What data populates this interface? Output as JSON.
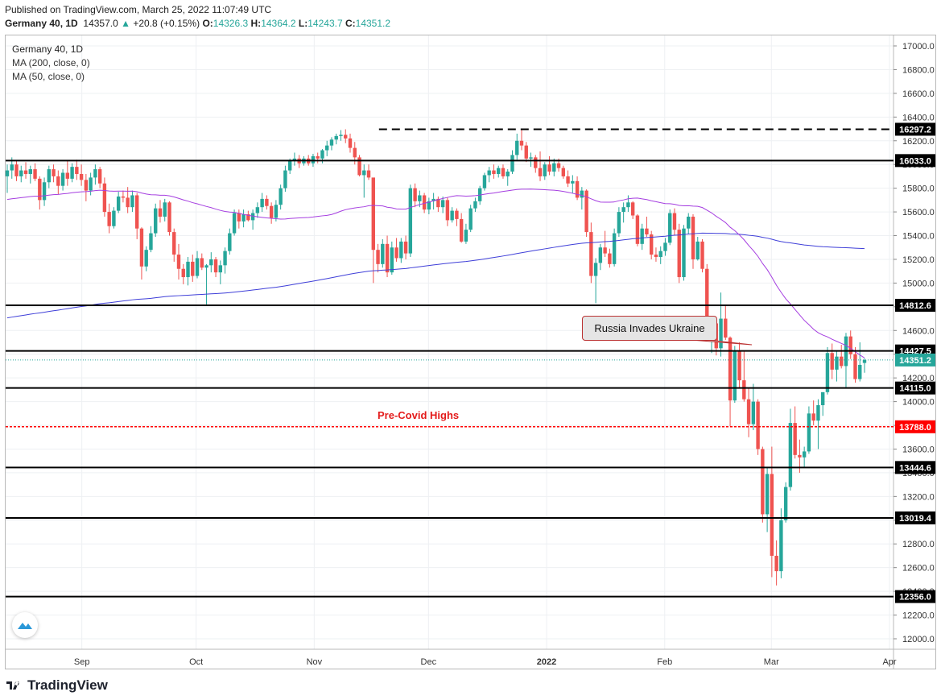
{
  "publish_line": "Published on TradingView.com, March 25, 2022 11:07:49 UTC",
  "ohlc": {
    "symbol": "Germany 40, 1D",
    "last": "14357.0",
    "arrow": "▲",
    "change": "+20.8 (+0.15%)",
    "o_label": "O:",
    "o": "14326.3",
    "h_label": "H:",
    "h": "14364.2",
    "l_label": "L:",
    "l": "14243.7",
    "c_label": "C:",
    "c": "14351.2"
  },
  "legend": {
    "title": "Germany 40, 1D",
    "ma200": "MA (200, close, 0)",
    "ma50": "MA (50, close, 0)"
  },
  "footer": {
    "brand": "TradingView",
    "logo_icon": "tradingview-logo-icon"
  },
  "annotations": {
    "callout": "Russia Invades Ukraine",
    "precovid": "Pre-Covid Highs"
  },
  "colors": {
    "up": "#26a69a",
    "down": "#ef5350",
    "ma200": "#3f3fd8",
    "ma50": "#a53ee0",
    "level": "#000000",
    "precovid": "#ff0000",
    "last_price": "#26a69a"
  },
  "chart_data": {
    "type": "candlestick",
    "symbol": "Germany 40",
    "interval": "1D",
    "ylim": [
      11900,
      17100
    ],
    "y_ticks": [
      12000,
      12200,
      12400,
      12600,
      12800,
      13000,
      13200,
      13400,
      13600,
      13800,
      14000,
      14200,
      14400,
      14600,
      14800,
      15000,
      15200,
      15400,
      15600,
      15800,
      16000,
      16200,
      16400,
      16600,
      16800,
      17000
    ],
    "x_ticks": [
      {
        "label": "Sep",
        "date": "2021-09-01"
      },
      {
        "label": "Oct",
        "date": "2021-10-01"
      },
      {
        "label": "Nov",
        "date": "2021-11-01"
      },
      {
        "label": "Dec",
        "date": "2021-12-01"
      },
      {
        "label": "2022",
        "date": "2022-01-01"
      },
      {
        "label": "Feb",
        "date": "2022-02-01"
      },
      {
        "label": "Mar",
        "date": "2022-03-01"
      },
      {
        "label": "Apr",
        "date": "2022-04-01"
      }
    ],
    "x_range": [
      "2021-08-12",
      "2022-04-01"
    ],
    "levels": [
      {
        "value": 16297.2,
        "label": "16297.2",
        "style": "dashed",
        "from": "2021-11-18"
      },
      {
        "value": 16033.0,
        "label": "16033.0",
        "style": "solid"
      },
      {
        "value": 14812.6,
        "label": "14812.6",
        "style": "solid"
      },
      {
        "value": 14427.5,
        "label": "14427.5",
        "style": "solid"
      },
      {
        "value": 14115.0,
        "label": "14115.0",
        "style": "solid"
      },
      {
        "value": 13788.0,
        "label": "13788.0",
        "style": "dotted-red"
      },
      {
        "value": 13444.6,
        "label": "13444.6",
        "style": "solid"
      },
      {
        "value": 13019.4,
        "label": "13019.4",
        "style": "solid"
      },
      {
        "value": 12356.0,
        "label": "12356.0",
        "style": "solid"
      }
    ],
    "last_price": {
      "value": 14351.2,
      "label": "14351.2"
    },
    "ohlc_sequence": [
      [
        15900,
        16000,
        15760,
        15950
      ],
      [
        15950,
        16060,
        15880,
        16000
      ],
      [
        16000,
        16030,
        15860,
        15900
      ],
      [
        15900,
        15990,
        15850,
        15950
      ],
      [
        15950,
        16020,
        15880,
        15920
      ],
      [
        15920,
        15990,
        15840,
        15960
      ],
      [
        15960,
        16010,
        15860,
        15880
      ],
      [
        15880,
        15900,
        15620,
        15700
      ],
      [
        15700,
        15890,
        15650,
        15850
      ],
      [
        15850,
        15990,
        15800,
        15960
      ],
      [
        15960,
        16000,
        15850,
        15900
      ],
      [
        15900,
        15950,
        15750,
        15820
      ],
      [
        15820,
        15960,
        15780,
        15930
      ],
      [
        15930,
        16030,
        15820,
        15880
      ],
      [
        15880,
        16010,
        15850,
        15980
      ],
      [
        15980,
        16040,
        15870,
        15920
      ],
      [
        15920,
        16000,
        15820,
        15870
      ],
      [
        15870,
        15920,
        15690,
        15780
      ],
      [
        15780,
        15930,
        15740,
        15890
      ],
      [
        15890,
        16000,
        15830,
        15960
      ],
      [
        15960,
        15980,
        15800,
        15840
      ],
      [
        15840,
        15890,
        15560,
        15600
      ],
      [
        15600,
        15670,
        15420,
        15480
      ],
      [
        15480,
        15640,
        15460,
        15610
      ],
      [
        15610,
        15770,
        15590,
        15730
      ],
      [
        15730,
        15780,
        15680,
        15720
      ],
      [
        15720,
        15810,
        15590,
        15640
      ],
      [
        15640,
        15780,
        15600,
        15740
      ],
      [
        15740,
        15760,
        15370,
        15460
      ],
      [
        15460,
        15470,
        15030,
        15140
      ],
      [
        15140,
        15310,
        15100,
        15280
      ],
      [
        15280,
        15480,
        15260,
        15420
      ],
      [
        15420,
        15670,
        15390,
        15630
      ],
      [
        15630,
        15700,
        15510,
        15560
      ],
      [
        15560,
        15710,
        15520,
        15680
      ],
      [
        15680,
        15690,
        15400,
        15430
      ],
      [
        15430,
        15460,
        15180,
        15240
      ],
      [
        15240,
        15330,
        15030,
        15120
      ],
      [
        15120,
        15160,
        14990,
        15050
      ],
      [
        15050,
        15220,
        14980,
        15180
      ],
      [
        15180,
        15240,
        15010,
        15060
      ],
      [
        15060,
        15270,
        15040,
        15210
      ],
      [
        15210,
        15250,
        15110,
        15130
      ],
      [
        15130,
        15160,
        14820,
        15150
      ],
      [
        15150,
        15260,
        15090,
        15200
      ],
      [
        15200,
        15220,
        15050,
        15090
      ],
      [
        15090,
        15190,
        14990,
        15150
      ],
      [
        15150,
        15300,
        15080,
        15270
      ],
      [
        15270,
        15460,
        15240,
        15420
      ],
      [
        15420,
        15620,
        15400,
        15590
      ],
      [
        15590,
        15620,
        15460,
        15520
      ],
      [
        15520,
        15620,
        15470,
        15580
      ],
      [
        15580,
        15610,
        15520,
        15530
      ],
      [
        15530,
        15620,
        15450,
        15590
      ],
      [
        15590,
        15680,
        15550,
        15640
      ],
      [
        15640,
        15760,
        15600,
        15710
      ],
      [
        15710,
        15740,
        15620,
        15650
      ],
      [
        15650,
        15680,
        15500,
        15550
      ],
      [
        15550,
        15700,
        15520,
        15660
      ],
      [
        15660,
        15830,
        15620,
        15800
      ],
      [
        15800,
        15990,
        15770,
        15950
      ],
      [
        15950,
        16050,
        15920,
        16030
      ],
      [
        16030,
        16100,
        15990,
        16050
      ],
      [
        16050,
        16080,
        15970,
        16010
      ],
      [
        16010,
        16070,
        15990,
        16050
      ],
      [
        16050,
        16080,
        15990,
        16010
      ],
      [
        16010,
        16090,
        15980,
        16070
      ],
      [
        16070,
        16100,
        16010,
        16050
      ],
      [
        16050,
        16130,
        16010,
        16120
      ],
      [
        16120,
        16200,
        16070,
        16160
      ],
      [
        16160,
        16230,
        16120,
        16210
      ],
      [
        16210,
        16260,
        16170,
        16240
      ],
      [
        16240,
        16290,
        16200,
        16250
      ],
      [
        16250,
        16297,
        16180,
        16220
      ],
      [
        16220,
        16260,
        16100,
        16140
      ],
      [
        16140,
        16190,
        16000,
        16060
      ],
      [
        16060,
        16080,
        15900,
        15910
      ],
      [
        15910,
        16000,
        15720,
        15950
      ],
      [
        15950,
        16000,
        15870,
        15890
      ],
      [
        15890,
        15690,
        15000,
        15280
      ],
      [
        15280,
        15330,
        15090,
        15160
      ],
      [
        15160,
        15370,
        15130,
        15330
      ],
      [
        15330,
        15400,
        15050,
        15090
      ],
      [
        15090,
        15350,
        15070,
        15300
      ],
      [
        15300,
        15380,
        15180,
        15210
      ],
      [
        15210,
        15380,
        15170,
        15350
      ],
      [
        15350,
        15400,
        15200,
        15250
      ],
      [
        15250,
        15830,
        15220,
        15800
      ],
      [
        15800,
        15840,
        15640,
        15690
      ],
      [
        15690,
        15780,
        15640,
        15740
      ],
      [
        15740,
        15760,
        15590,
        15620
      ],
      [
        15620,
        15720,
        15580,
        15690
      ],
      [
        15690,
        15760,
        15620,
        15710
      ],
      [
        15710,
        15730,
        15600,
        15640
      ],
      [
        15640,
        15730,
        15590,
        15700
      ],
      [
        15700,
        15720,
        15480,
        15530
      ],
      [
        15530,
        15640,
        15510,
        15610
      ],
      [
        15610,
        15630,
        15480,
        15540
      ],
      [
        15540,
        15590,
        15340,
        15350
      ],
      [
        15350,
        15500,
        15330,
        15450
      ],
      [
        15450,
        15660,
        15430,
        15630
      ],
      [
        15630,
        15720,
        15600,
        15690
      ],
      [
        15690,
        15820,
        15660,
        15800
      ],
      [
        15800,
        15930,
        15780,
        15910
      ],
      [
        15910,
        15980,
        15850,
        15950
      ],
      [
        15950,
        16000,
        15880,
        15920
      ],
      [
        15920,
        15990,
        15890,
        15970
      ],
      [
        15970,
        16000,
        15880,
        15900
      ],
      [
        15900,
        15960,
        15820,
        15940
      ],
      [
        15940,
        16120,
        15920,
        16080
      ],
      [
        16080,
        16260,
        16040,
        16200
      ],
      [
        16200,
        16297,
        16120,
        16160
      ],
      [
        16160,
        16190,
        16020,
        16050
      ],
      [
        16050,
        16100,
        15980,
        16060
      ],
      [
        16060,
        16080,
        15930,
        15970
      ],
      [
        15970,
        16110,
        15860,
        15900
      ],
      [
        15900,
        16020,
        15870,
        16000
      ],
      [
        16000,
        16070,
        15910,
        15940
      ],
      [
        15940,
        16050,
        15900,
        16010
      ],
      [
        16010,
        16050,
        15940,
        15970
      ],
      [
        15970,
        15990,
        15880,
        15900
      ],
      [
        15900,
        15950,
        15810,
        15840
      ],
      [
        15840,
        15910,
        15760,
        15860
      ],
      [
        15860,
        15900,
        15700,
        15720
      ],
      [
        15720,
        15810,
        15620,
        15780
      ],
      [
        15780,
        15790,
        15390,
        15430
      ],
      [
        15430,
        15510,
        15000,
        15060
      ],
      [
        15060,
        15210,
        14830,
        15170
      ],
      [
        15170,
        15330,
        15110,
        15300
      ],
      [
        15300,
        15440,
        15220,
        15250
      ],
      [
        15250,
        15290,
        15130,
        15160
      ],
      [
        15160,
        15460,
        15140,
        15420
      ],
      [
        15420,
        15640,
        15390,
        15600
      ],
      [
        15600,
        15680,
        15510,
        15640
      ],
      [
        15640,
        15740,
        15600,
        15680
      ],
      [
        15680,
        15690,
        15540,
        15570
      ],
      [
        15570,
        15580,
        15310,
        15330
      ],
      [
        15330,
        15500,
        15280,
        15460
      ],
      [
        15460,
        15560,
        15390,
        15410
      ],
      [
        15410,
        15440,
        15200,
        15240
      ],
      [
        15240,
        15300,
        15180,
        15220
      ],
      [
        15220,
        15310,
        15160,
        15270
      ],
      [
        15270,
        15380,
        15230,
        15340
      ],
      [
        15340,
        15620,
        15320,
        15590
      ],
      [
        15590,
        15630,
        15400,
        15450
      ],
      [
        15450,
        15500,
        15000,
        15050
      ],
      [
        15050,
        15490,
        15020,
        15460
      ],
      [
        15460,
        15590,
        15410,
        15560
      ],
      [
        15560,
        15580,
        15120,
        15200
      ],
      [
        15200,
        15390,
        15190,
        15350
      ],
      [
        15350,
        15370,
        15090,
        15120
      ],
      [
        15120,
        15160,
        14540,
        14580
      ],
      [
        14580,
        14690,
        14410,
        14660
      ],
      [
        14660,
        14690,
        14390,
        14450
      ],
      [
        14450,
        14920,
        14380,
        14700
      ],
      [
        14700,
        14810,
        14520,
        14540
      ],
      [
        14540,
        14550,
        13790,
        14010
      ],
      [
        14010,
        14470,
        13990,
        14430
      ],
      [
        14430,
        14500,
        14120,
        14180
      ],
      [
        14180,
        14430,
        14000,
        14020
      ],
      [
        14020,
        14110,
        13700,
        13810
      ],
      [
        13810,
        14150,
        13760,
        14000
      ],
      [
        14000,
        14020,
        13550,
        13600
      ],
      [
        13600,
        13620,
        12980,
        13050
      ],
      [
        13050,
        13450,
        12900,
        13390
      ],
      [
        13390,
        13620,
        12520,
        12700
      ],
      [
        12700,
        12830,
        12450,
        12570
      ],
      [
        12570,
        13100,
        12510,
        13000
      ],
      [
        13000,
        13320,
        12980,
        13280
      ],
      [
        13280,
        13940,
        13250,
        13820
      ],
      [
        13820,
        13960,
        13520,
        13550
      ],
      [
        13550,
        13680,
        13400,
        13530
      ],
      [
        13530,
        13620,
        13440,
        13580
      ],
      [
        13580,
        13960,
        13560,
        13900
      ],
      [
        13900,
        14010,
        13800,
        13840
      ],
      [
        13840,
        14020,
        13600,
        13970
      ],
      [
        13970,
        14050,
        13880,
        14080
      ],
      [
        14080,
        14460,
        14060,
        14410
      ],
      [
        14410,
        14490,
        14190,
        14270
      ],
      [
        14270,
        14430,
        14170,
        14380
      ],
      [
        14380,
        14480,
        14280,
        14300
      ],
      [
        14300,
        14580,
        14110,
        14550
      ],
      [
        14550,
        14600,
        14360,
        14400
      ],
      [
        14400,
        14460,
        14160,
        14190
      ],
      [
        14190,
        14500,
        14170,
        14310
      ],
      [
        14326.3,
        14364.2,
        14243.7,
        14351.2
      ]
    ]
  }
}
